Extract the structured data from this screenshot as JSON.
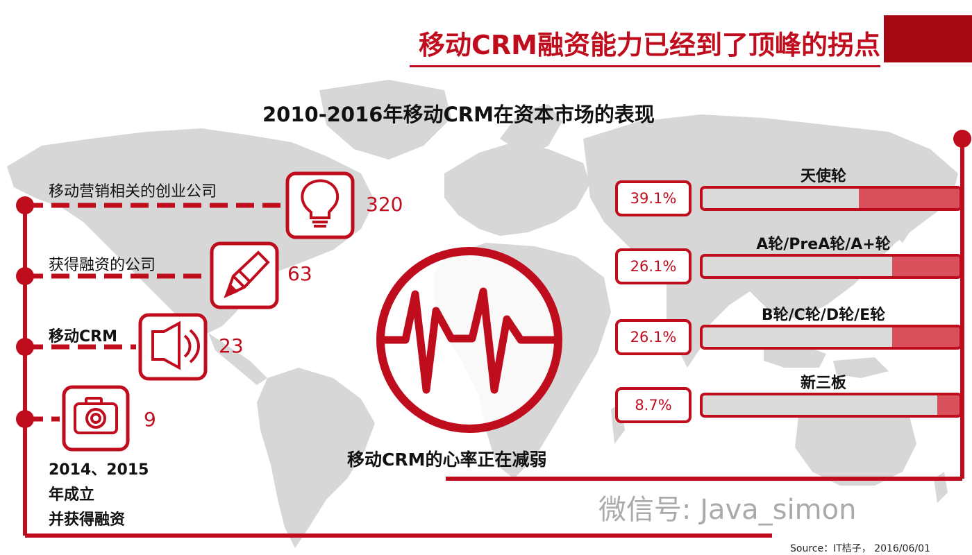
{
  "header": {
    "title": "移动CRM融资能力已经到了顶峰的拐点",
    "accent_color": "#c00d1e",
    "block_color": "#a50a14"
  },
  "chart_data": [
    {
      "type": "table",
      "title": "2010-2016年移动CRM在资本市场的表现",
      "rows": [
        {
          "label": "移动营销相关的创业公司",
          "value": 320,
          "icon": "lightbulb-icon"
        },
        {
          "label": "获得融资的公司",
          "value": 63,
          "icon": "pencil-icon"
        },
        {
          "label": "移动CRM",
          "value": 23,
          "icon": "speaker-icon"
        },
        {
          "label": "2014、2015年成立并获得融资",
          "value": 9,
          "icon": "camera-icon"
        }
      ],
      "founded_lines": [
        "2014、2015",
        "年成立",
        "并获得融资"
      ]
    },
    {
      "type": "bar",
      "orientation": "horizontal",
      "categories": [
        "天使轮",
        "A轮/PreA轮/A+轮",
        "B轮/C轮/D轮/E轮",
        "新三板"
      ],
      "values": [
        39.1,
        26.1,
        26.1,
        8.7
      ],
      "value_labels": [
        "39.1%",
        "26.1%",
        "26.1%",
        "8.7%"
      ],
      "xlim": [
        0,
        100
      ],
      "grid": false,
      "fill_color": "#d8505b",
      "track_color": "#dadada"
    }
  ],
  "heart": {
    "icon": "heartbeat-icon",
    "caption": "移动CRM的心率正在减弱"
  },
  "watermark": "微信号: Java_simon",
  "source": "Source：IT桔子， 2016/06/01"
}
